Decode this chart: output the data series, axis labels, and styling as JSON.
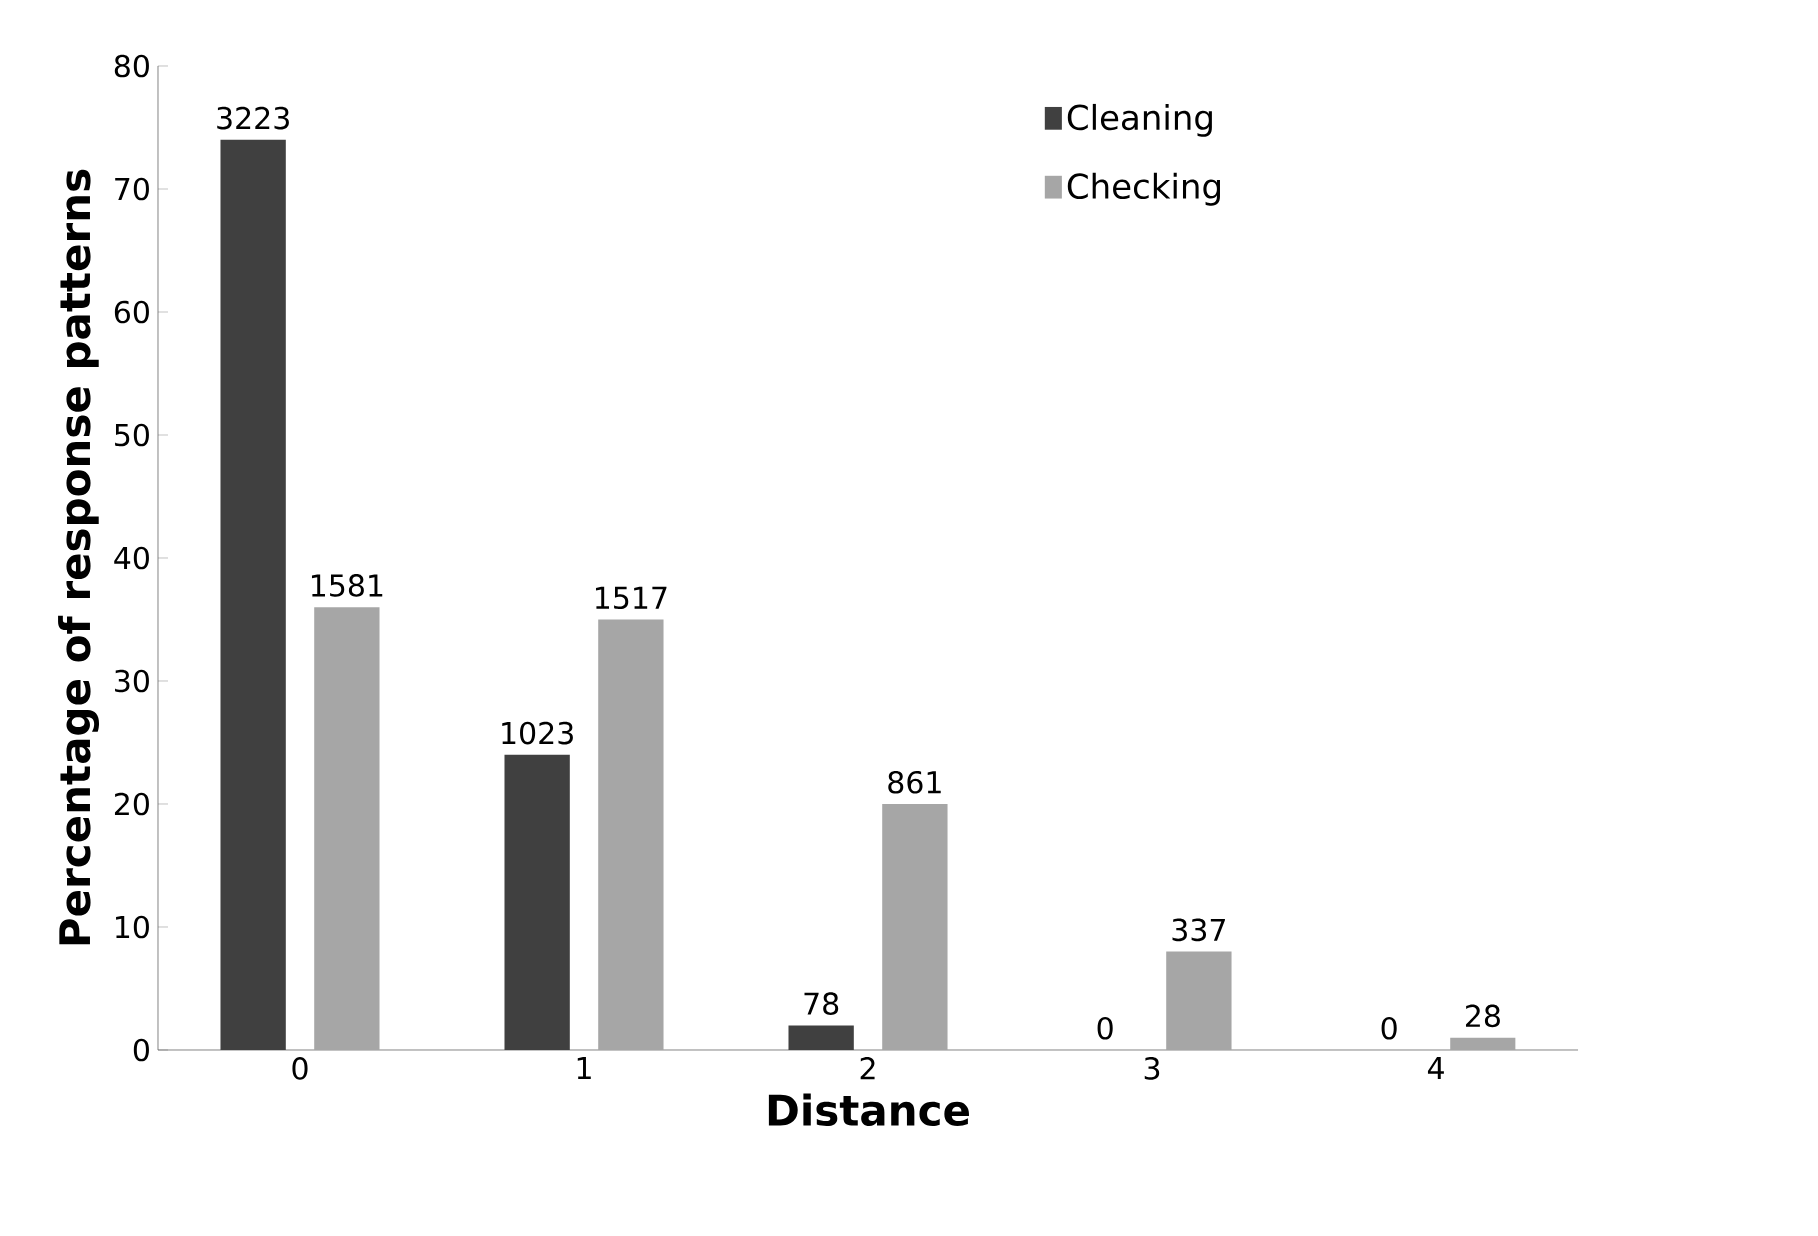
{
  "chart_data": {
    "type": "bar",
    "xlabel": "Distance",
    "ylabel": "Percentage of response patterns",
    "categories": [
      "0",
      "1",
      "2",
      "3",
      "4"
    ],
    "series": [
      {
        "name": "Cleaning",
        "color": "#404040",
        "values": [
          74,
          24,
          2,
          0,
          0
        ]
      },
      {
        "name": "Checking",
        "color": "#a6a6a6",
        "values": [
          36,
          35,
          20,
          8,
          1
        ]
      }
    ],
    "annotations": [
      "3223",
      "1023",
      "78",
      "0",
      "0",
      "1581",
      "1517",
      "861",
      "337",
      "28"
    ],
    "ylim": [
      0,
      80
    ],
    "yticks": [
      0,
      10,
      20,
      30,
      40,
      50,
      60,
      70,
      80
    ],
    "legend": "top right",
    "grid": false
  }
}
